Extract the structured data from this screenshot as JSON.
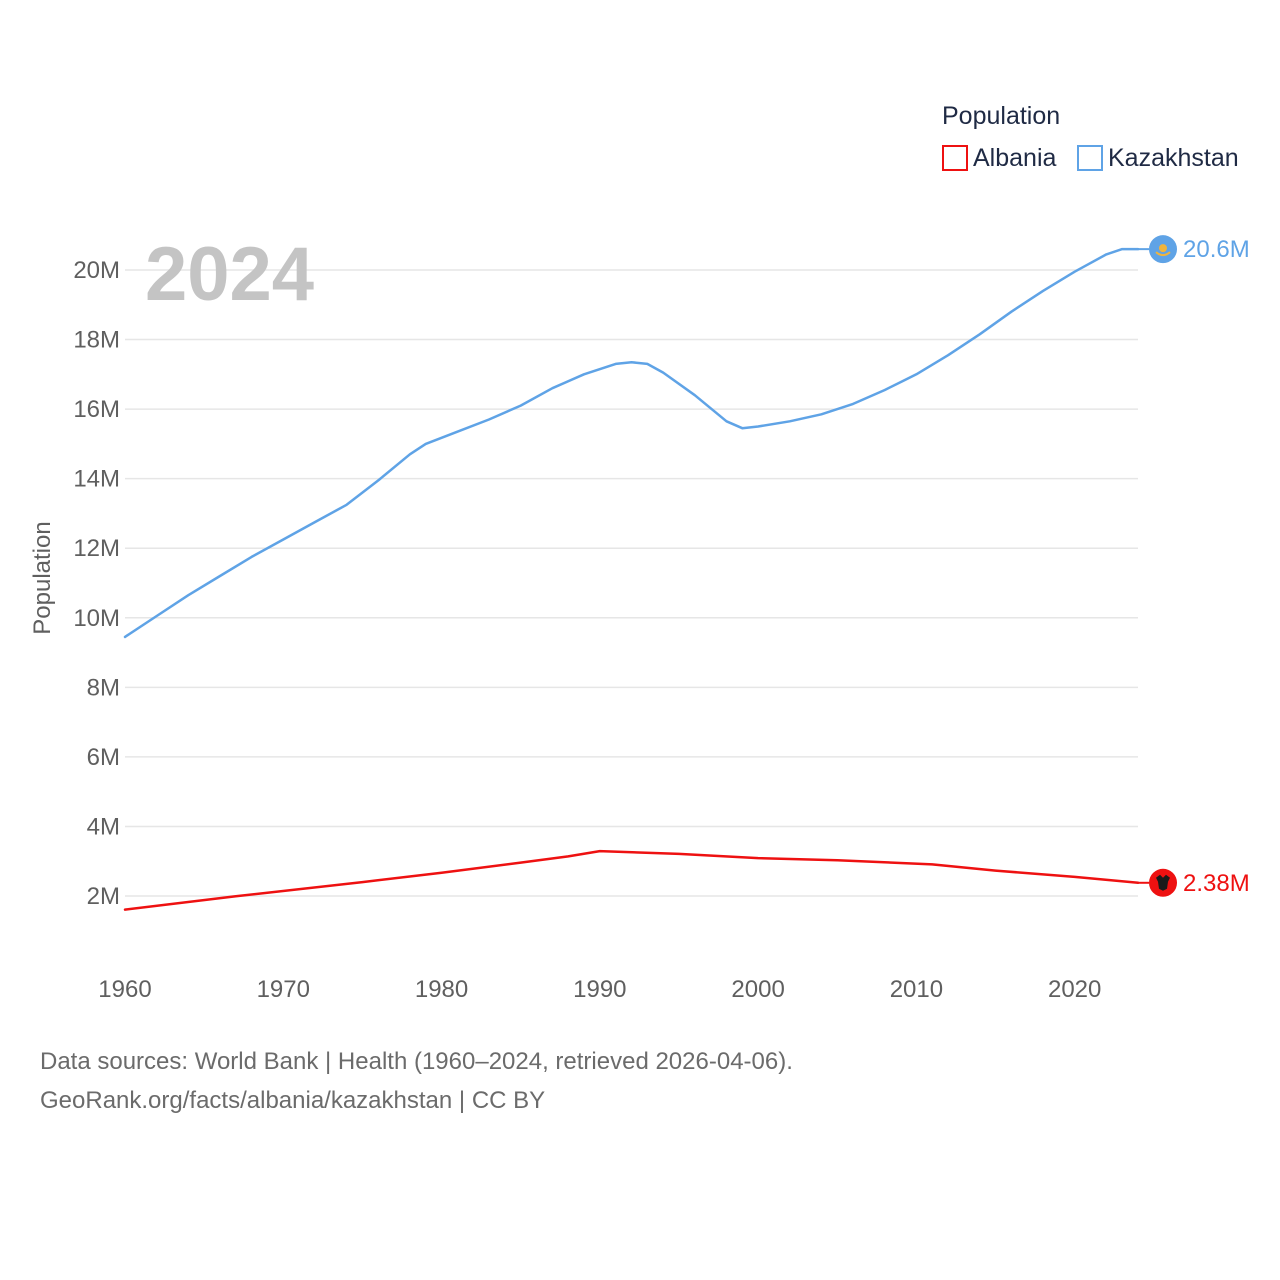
{
  "chart_data": {
    "type": "line",
    "current_year_label": "2024",
    "ylabel": "Population",
    "xlabel": "",
    "xlim": [
      1960,
      2024
    ],
    "ylim": [
      0,
      21000000
    ],
    "x_ticks": [
      1960,
      1970,
      1980,
      1990,
      2000,
      2010,
      2020
    ],
    "y_ticks": [
      {
        "value": 2000000,
        "label": "2M"
      },
      {
        "value": 4000000,
        "label": "4M"
      },
      {
        "value": 6000000,
        "label": "6M"
      },
      {
        "value": 8000000,
        "label": "8M"
      },
      {
        "value": 10000000,
        "label": "10M"
      },
      {
        "value": 12000000,
        "label": "12M"
      },
      {
        "value": 14000000,
        "label": "14M"
      },
      {
        "value": 16000000,
        "label": "16M"
      },
      {
        "value": 18000000,
        "label": "18M"
      },
      {
        "value": 20000000,
        "label": "20M"
      }
    ],
    "grid": true,
    "legend": {
      "title": "Population",
      "position": "top-right"
    },
    "series": [
      {
        "name": "Albania",
        "color": "#ee1111",
        "end_label": "2.38M",
        "points": [
          [
            1960,
            1610000
          ],
          [
            1967,
            1990000
          ],
          [
            1975,
            2400000
          ],
          [
            1980,
            2670000
          ],
          [
            1985,
            2960000
          ],
          [
            1988,
            3140000
          ],
          [
            1990,
            3290000
          ],
          [
            1995,
            3210000
          ],
          [
            2000,
            3090000
          ],
          [
            2005,
            3030000
          ],
          [
            2011,
            2910000
          ],
          [
            2015,
            2730000
          ],
          [
            2020,
            2550000
          ],
          [
            2024,
            2380000
          ]
        ]
      },
      {
        "name": "Kazakhstan",
        "color": "#5fa3e6",
        "end_label": "20.6M",
        "points": [
          [
            1960,
            9450000
          ],
          [
            1962,
            10050000
          ],
          [
            1964,
            10650000
          ],
          [
            1966,
            11200000
          ],
          [
            1968,
            11750000
          ],
          [
            1970,
            12250000
          ],
          [
            1972,
            12750000
          ],
          [
            1974,
            13250000
          ],
          [
            1976,
            13950000
          ],
          [
            1978,
            14700000
          ],
          [
            1979,
            15000000
          ],
          [
            1981,
            15350000
          ],
          [
            1983,
            15700000
          ],
          [
            1985,
            16100000
          ],
          [
            1987,
            16600000
          ],
          [
            1989,
            17000000
          ],
          [
            1991,
            17300000
          ],
          [
            1992,
            17350000
          ],
          [
            1993,
            17300000
          ],
          [
            1994,
            17050000
          ],
          [
            1996,
            16400000
          ],
          [
            1998,
            15650000
          ],
          [
            1999,
            15450000
          ],
          [
            2000,
            15500000
          ],
          [
            2002,
            15650000
          ],
          [
            2004,
            15850000
          ],
          [
            2006,
            16150000
          ],
          [
            2008,
            16550000
          ],
          [
            2010,
            17000000
          ],
          [
            2012,
            17550000
          ],
          [
            2014,
            18150000
          ],
          [
            2016,
            18800000
          ],
          [
            2018,
            19400000
          ],
          [
            2020,
            19950000
          ],
          [
            2022,
            20450000
          ],
          [
            2023,
            20600000
          ],
          [
            2024,
            20600000
          ]
        ]
      }
    ]
  },
  "footer": {
    "line1": "Data sources: World Bank | Health (1960–2024, retrieved 2026-04-06).",
    "line2": "GeoRank.org/facts/albania/kazakhstan | CC BY"
  }
}
